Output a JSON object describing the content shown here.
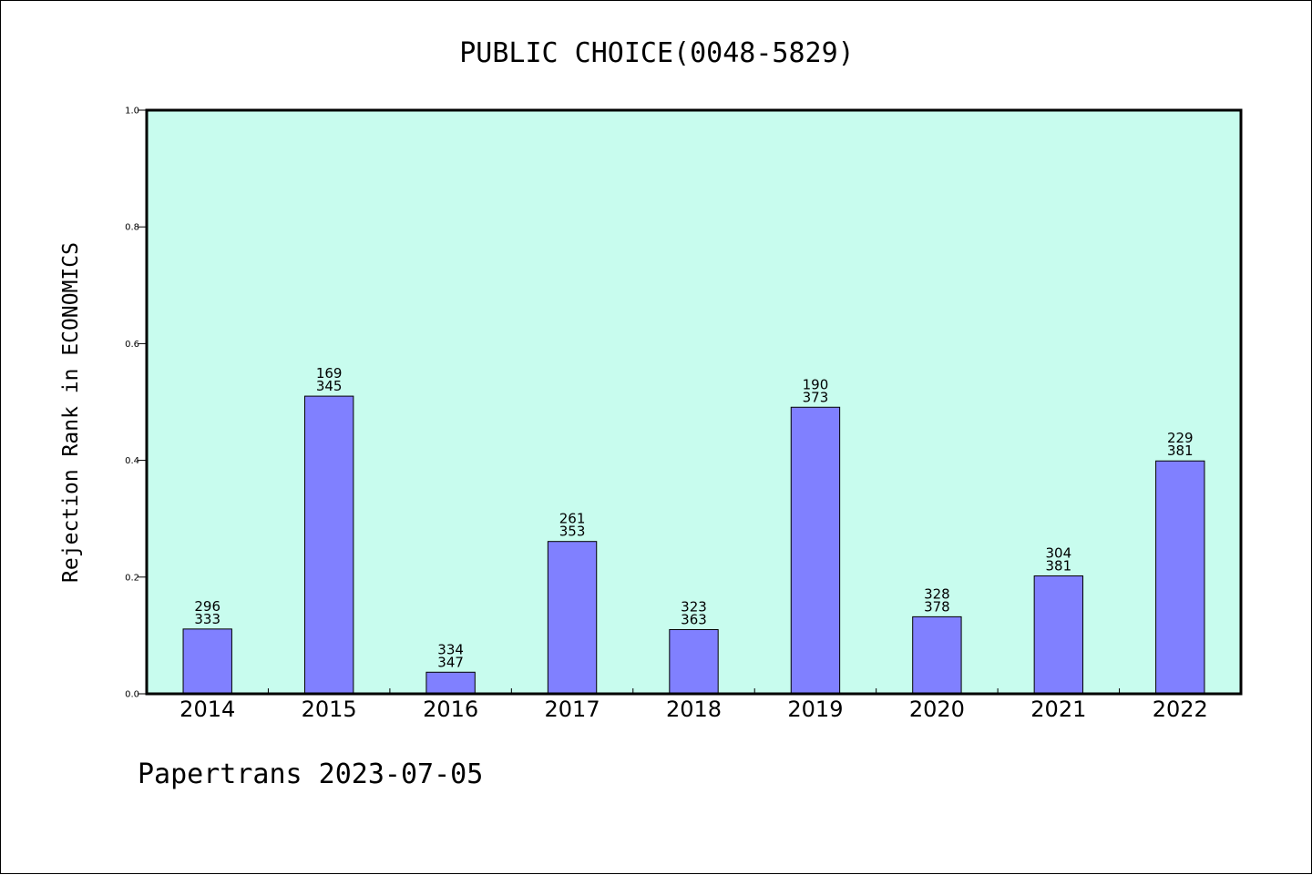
{
  "footer": "Papertrans 2023-07-05",
  "chart_data": {
    "type": "bar",
    "title": "PUBLIC CHOICE(0048-5829)",
    "ylabel": "Rejection Rank in ECONOMICS",
    "xlabel": "",
    "ylim": [
      0,
      1.0
    ],
    "yticks": [
      "0.0",
      "0.2",
      "0.4",
      "0.6",
      "0.8",
      "1.0"
    ],
    "categories": [
      "2014",
      "2015",
      "2016",
      "2017",
      "2018",
      "2019",
      "2020",
      "2021",
      "2022"
    ],
    "values": [
      0.111,
      0.51,
      0.037,
      0.261,
      0.11,
      0.491,
      0.132,
      0.202,
      0.399
    ],
    "labels_top": [
      "296",
      "169",
      "334",
      "261",
      "323",
      "190",
      "328",
      "304",
      "229"
    ],
    "labels_bottom": [
      "333",
      "345",
      "347",
      "353",
      "363",
      "373",
      "378",
      "381",
      "381"
    ],
    "grid": false,
    "colors": {
      "plot_background": "#c8fcee",
      "bar_fill": "#8080ff",
      "bar_stroke": "#000000"
    }
  }
}
